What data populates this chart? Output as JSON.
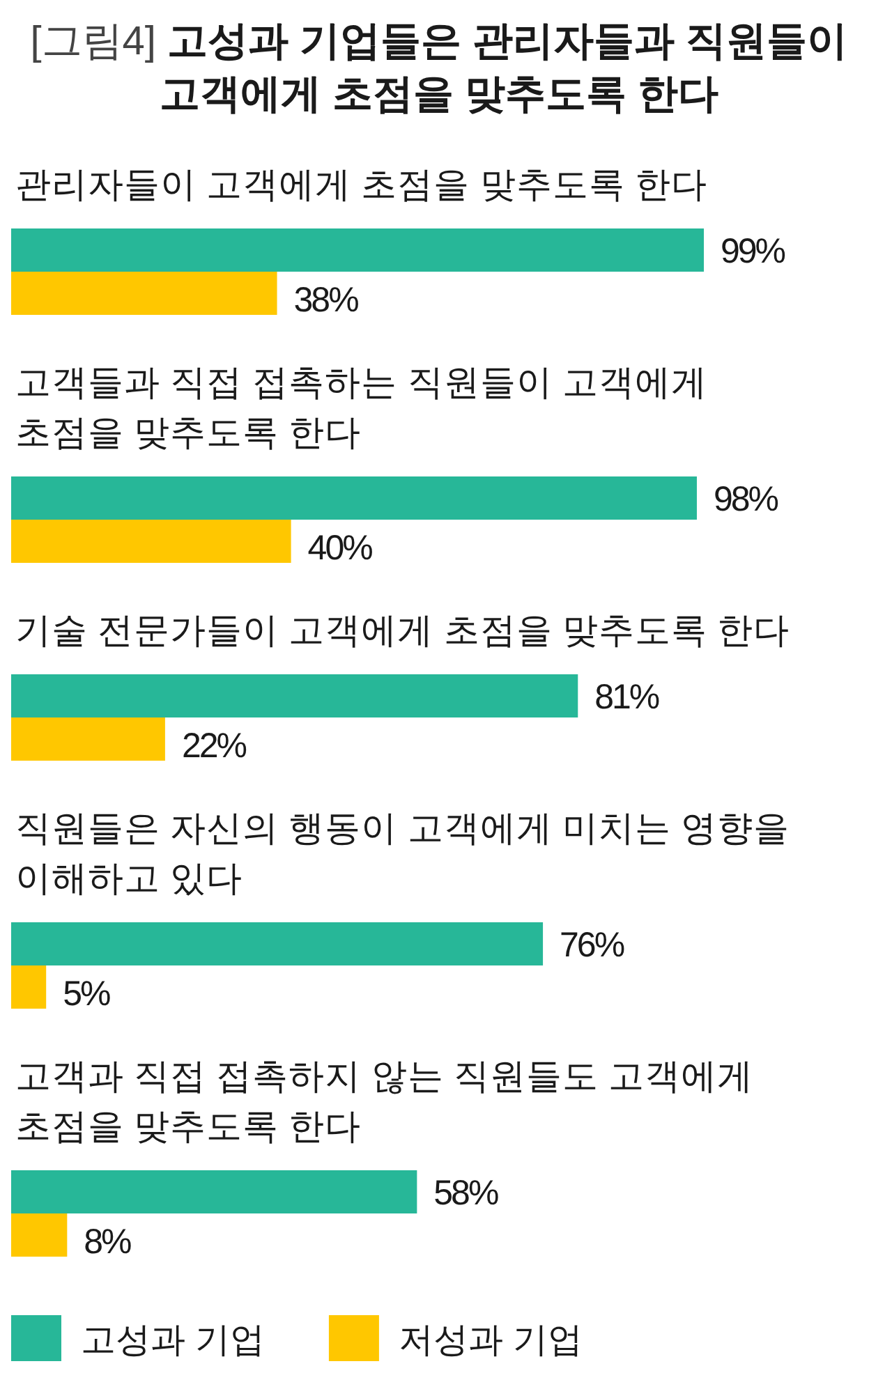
{
  "chart_data": {
    "type": "bar",
    "orientation": "horizontal",
    "title": "[그림4] 고성과 기업들은 관리자들과 직원들이 고객에게 초점을 맞추도록 한다",
    "categories": [
      "관리자들이 고객에게 초점을 맞추도록 한다",
      "고객들과 직접 접촉하는 직원들이 고객에게 초점을 맞추도록 한다",
      "기술 전문가들이 고객에게 초점을 맞추도록 한다",
      "직원들은 자신의 행동이 고객에게 미치는 영향을 이해하고 있다",
      "고객과 직접 접촉하지 않는 직원들도 고객에게 초점을 맞추도록 한다"
    ],
    "series": [
      {
        "name": "고성과 기업",
        "color": "#27b798",
        "values": [
          99,
          98,
          81,
          76,
          58
        ],
        "value_labels": [
          "99%",
          "98%",
          "81%",
          "76%",
          "58%"
        ]
      },
      {
        "name": "저성과 기업",
        "color": "#ffc700",
        "values": [
          38,
          40,
          22,
          5,
          8
        ],
        "value_labels": [
          "38%",
          "40%",
          "22%",
          "5%",
          "8%"
        ]
      }
    ],
    "legend": "bottom",
    "tick_labels": "y"
  }
}
